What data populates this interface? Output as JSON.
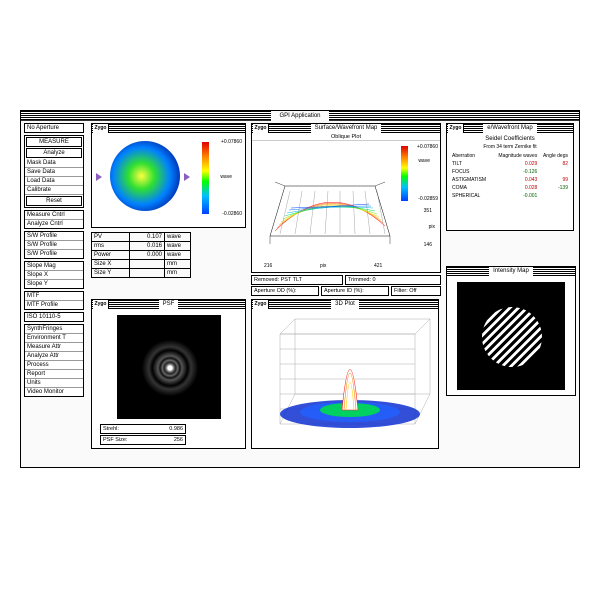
{
  "app": {
    "title": "GPI Application"
  },
  "sidebar": {
    "groups": [
      {
        "items": [
          {
            "label": "No Aperture"
          }
        ]
      },
      {
        "items": [
          {
            "label": "MEASURE",
            "framed": true
          },
          {
            "label": "Analyze",
            "framed": true
          },
          {
            "label": "Mask Data"
          },
          {
            "label": "Save Data"
          },
          {
            "label": "Load Data"
          },
          {
            "label": "Calibrate"
          },
          {
            "label": "Reset",
            "framed": true
          }
        ]
      },
      {
        "items": [
          {
            "label": "Measure Cntrl"
          },
          {
            "label": "Analyze Cntrl"
          }
        ]
      },
      {
        "items": [
          {
            "label": "S/W Profile"
          },
          {
            "label": "S/W Profile"
          },
          {
            "label": "S/W Profile"
          }
        ]
      },
      {
        "items": [
          {
            "label": "Slope Mag"
          },
          {
            "label": "Slope X"
          },
          {
            "label": "Slope Y"
          }
        ]
      },
      {
        "items": [
          {
            "label": "MTF"
          },
          {
            "label": "MTF Profile"
          }
        ]
      },
      {
        "items": [
          {
            "label": "ISO 10110-5"
          }
        ]
      },
      {
        "items": [
          {
            "label": "SynthFringes"
          },
          {
            "label": "Environment T"
          },
          {
            "label": "Measure Attr"
          },
          {
            "label": "Analyze Attr"
          },
          {
            "label": "Process"
          },
          {
            "label": "Report"
          },
          {
            "label": "Units"
          },
          {
            "label": "Video Monitor"
          }
        ]
      }
    ]
  },
  "windows": {
    "aperture": {
      "title": "",
      "colorbar": {
        "max": "+0.07860",
        "min": "-0.02860",
        "label": "wave"
      }
    },
    "surface": {
      "title": "Surface/Wavefront Map",
      "subtitle": "Oblique Plot",
      "colorbar": {
        "max": "+0.07860",
        "mid": "-0.02859",
        "label": "wave"
      },
      "axes": {
        "x_left": "216",
        "x_right": "421",
        "y_near": "146",
        "y_far": "351",
        "xlabel": "pix",
        "ylabel": "pix"
      },
      "status": {
        "removed": "Removed: PST TLT",
        "aperture_od": "Aperture OD (%):",
        "aperture_id": "Aperture ID (%):",
        "trimmed": "Trimmed: 0",
        "filter": "Filter:    Off"
      }
    },
    "seidel": {
      "title": "e/Wavefront Map",
      "subtitle": "Seidel Coefficients",
      "header": "From 34 term Zernike fit",
      "cols": [
        "Aberration",
        "Magnitude waves",
        "Angle degs"
      ],
      "rows": [
        {
          "name": "TILT",
          "mag": "0.029",
          "cls_m": "pos",
          "ang": "82",
          "cls_a": "pos"
        },
        {
          "name": "FOCUS",
          "mag": "-0.126",
          "cls_m": "neg",
          "ang": "",
          "cls_a": ""
        },
        {
          "name": "ASTIGMATISM",
          "mag": "0.043",
          "cls_m": "pos",
          "ang": "99",
          "cls_a": "pos"
        },
        {
          "name": "COMA",
          "mag": "0.028",
          "cls_m": "pos",
          "ang": "-139",
          "cls_a": "neg"
        },
        {
          "name": "SPHERICAL",
          "mag": "-0.001",
          "cls_m": "neg",
          "ang": "",
          "cls_a": ""
        }
      ]
    },
    "psf": {
      "title": "PSF",
      "strehl_label": "Strehl:",
      "strehl": "0.986",
      "size_label": "PSF Size:",
      "size": "256"
    },
    "plot3d": {
      "title": "3D Plot"
    },
    "intensity": {
      "title": "Intensity Map"
    }
  },
  "stats": {
    "rows": [
      {
        "k": "PV",
        "v": "0.107",
        "u": "wave"
      },
      {
        "k": "rms",
        "v": "0.016",
        "u": "wave"
      },
      {
        "k": "Power",
        "v": "0.000",
        "u": "wave"
      },
      {
        "k": "Size X",
        "v": "",
        "u": "mm"
      },
      {
        "k": "Size Y",
        "v": "",
        "u": "mm"
      }
    ]
  },
  "colors": {
    "frame": "#000000",
    "bg": "#ffffff"
  }
}
